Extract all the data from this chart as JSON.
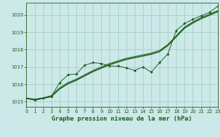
{
  "title": "Graphe pression niveau de la mer (hPa)",
  "background_color": "#cce8e8",
  "grid_color": "#99ccbb",
  "line_color": "#1a5c1a",
  "marker_color": "#1a5c1a",
  "xlim": [
    0,
    23
  ],
  "ylim": [
    1014.7,
    1020.7
  ],
  "yticks": [
    1015,
    1016,
    1017,
    1018,
    1019,
    1020
  ],
  "xticks": [
    0,
    1,
    2,
    3,
    4,
    5,
    6,
    7,
    8,
    9,
    10,
    11,
    12,
    13,
    14,
    15,
    16,
    17,
    18,
    19,
    20,
    21,
    22,
    23
  ],
  "series_smooth": [
    [
      1015.2,
      1015.15,
      1015.22,
      1015.35,
      1015.8,
      1016.1,
      1016.3,
      1016.55,
      1016.8,
      1017.0,
      1017.2,
      1017.35,
      1017.5,
      1017.6,
      1017.7,
      1017.8,
      1017.95,
      1018.3,
      1018.8,
      1019.3,
      1019.6,
      1019.85,
      1020.05,
      1020.25
    ],
    [
      1015.2,
      1015.1,
      1015.2,
      1015.3,
      1015.75,
      1016.05,
      1016.25,
      1016.5,
      1016.75,
      1016.95,
      1017.15,
      1017.3,
      1017.45,
      1017.55,
      1017.65,
      1017.75,
      1017.9,
      1018.25,
      1018.75,
      1019.25,
      1019.55,
      1019.8,
      1020.0,
      1020.2
    ],
    [
      1015.18,
      1015.08,
      1015.18,
      1015.28,
      1015.72,
      1016.02,
      1016.22,
      1016.47,
      1016.72,
      1016.92,
      1017.12,
      1017.27,
      1017.42,
      1017.52,
      1017.62,
      1017.72,
      1017.87,
      1018.22,
      1018.72,
      1019.22,
      1019.52,
      1019.77,
      1019.97,
      1020.17
    ]
  ],
  "series_jagged": [
    1015.2,
    1015.1,
    1015.2,
    1015.3,
    1016.1,
    1016.55,
    1016.6,
    1017.1,
    1017.25,
    1017.2,
    1017.05,
    1017.05,
    1016.95,
    1016.8,
    1017.0,
    1016.7,
    1017.25,
    1017.75,
    1019.1,
    1019.5,
    1019.75,
    1019.95,
    1020.15,
    1020.5
  ],
  "font_color": "#1a5c1a",
  "title_fontsize": 6.5,
  "tick_fontsize": 5.0
}
